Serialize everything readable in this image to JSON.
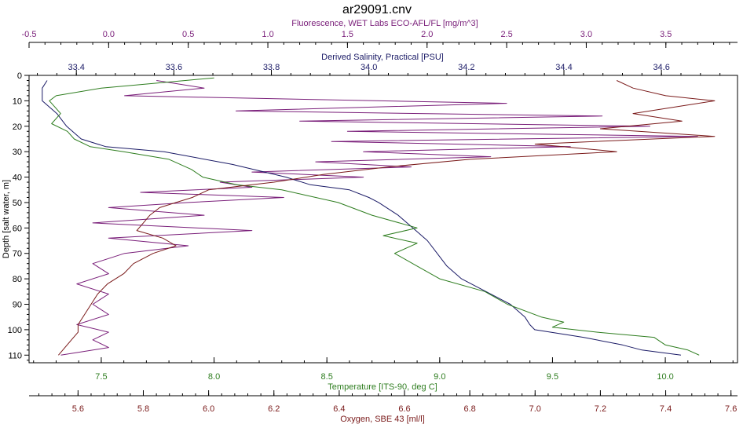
{
  "chart_data": {
    "type": "line",
    "title": "ar29091.cnv",
    "colors": {
      "fluorescence": "#7a1f7a",
      "salinity": "#1a1a66",
      "temperature": "#2e7d1f",
      "oxygen": "#7a1a1a",
      "axis": "#000000",
      "background": "#ffffff"
    },
    "axes": {
      "depth": {
        "label": "Depth [salt water, m]",
        "range": [
          0,
          113
        ],
        "inverted": true,
        "ticks": [
          0,
          10,
          20,
          30,
          40,
          50,
          60,
          70,
          80,
          90,
          100,
          110
        ]
      },
      "fluorescence": {
        "label": "Fluorescence, WET Labs ECO-AFL/FL [mg/m^3]",
        "position": "top",
        "range": [
          -0.5,
          3.95
        ],
        "ticks": [
          -0.5,
          0.0,
          0.5,
          1.0,
          1.5,
          2.0,
          2.5,
          3.0,
          3.5
        ],
        "tick_labels": [
          "-0.5",
          "0.0",
          "0.5",
          "1.0",
          "1.5",
          "2.0",
          "2.5",
          "3.0",
          "3.5"
        ]
      },
      "salinity": {
        "label": "Derived Salinity, Practical [PSU]",
        "position": "top",
        "range": [
          33.303,
          34.756
        ],
        "ticks": [
          33.4,
          33.6,
          33.8,
          34.0,
          34.2,
          34.4,
          34.6
        ],
        "tick_labels": [
          "33.4",
          "33.6",
          "33.8",
          "34.0",
          "34.2",
          "34.4",
          "34.6"
        ]
      },
      "temperature": {
        "label": "Temperature [ITS-90, deg C]",
        "position": "bottom",
        "range": [
          7.18,
          10.32
        ],
        "ticks": [
          7.5,
          8.0,
          8.5,
          9.0,
          9.5,
          10.0
        ],
        "tick_labels": [
          "7.5",
          "8.0",
          "8.5",
          "9.0",
          "9.5",
          "10.0"
        ]
      },
      "oxygen": {
        "label": "Oxygen, SBE 43 [ml/l]",
        "position": "bottom",
        "range": [
          5.45,
          7.62
        ],
        "ticks": [
          5.6,
          5.8,
          6.0,
          6.2,
          6.4,
          6.6,
          6.8,
          7.0,
          7.2,
          7.4,
          7.6
        ],
        "tick_labels": [
          "5.6",
          "5.8",
          "6.0",
          "6.2",
          "6.4",
          "6.6",
          "6.8",
          "7.0",
          "7.2",
          "7.4",
          "7.6"
        ]
      }
    },
    "grid": false,
    "series": [
      {
        "key": "fluorescence",
        "axis": "fluorescence",
        "depth": [
          2,
          5,
          8,
          11,
          14,
          16,
          18,
          20,
          22,
          24,
          26,
          28,
          30,
          32,
          34,
          36,
          38,
          40,
          42,
          44,
          46,
          48,
          50,
          52,
          55,
          58,
          61,
          64,
          67,
          70,
          74,
          78,
          82,
          86,
          90,
          94,
          98,
          101,
          104,
          107,
          110
        ],
        "values": [
          0.3,
          0.6,
          0.1,
          2.5,
          0.8,
          3.1,
          1.2,
          3.4,
          1.5,
          3.7,
          1.4,
          2.9,
          1.6,
          2.4,
          1.3,
          1.9,
          0.9,
          1.6,
          0.7,
          0.9,
          0.2,
          1.1,
          0.5,
          0.0,
          0.6,
          -0.1,
          0.9,
          0.0,
          0.5,
          0.1,
          -0.1,
          0.0,
          -0.2,
          0.0,
          -0.1,
          0.0,
          -0.2,
          0.0,
          -0.1,
          0.0,
          -0.3
        ]
      },
      {
        "key": "salinity",
        "axis": "salinity",
        "depth": [
          2,
          5,
          10,
          15,
          20,
          25,
          28,
          30,
          35,
          40,
          43,
          45,
          48,
          50,
          55,
          60,
          65,
          70,
          75,
          80,
          85,
          90,
          95,
          98,
          100,
          103,
          106,
          108,
          110
        ],
        "values": [
          33.34,
          33.33,
          33.33,
          33.36,
          33.38,
          33.41,
          33.46,
          33.58,
          33.72,
          33.83,
          33.88,
          33.96,
          34.0,
          34.02,
          34.06,
          34.09,
          34.12,
          34.14,
          34.16,
          34.19,
          34.24,
          34.29,
          34.32,
          34.33,
          34.34,
          34.44,
          34.52,
          34.56,
          34.64
        ]
      },
      {
        "key": "temperature",
        "axis": "temperature",
        "depth": [
          1,
          3,
          5,
          8,
          10,
          15,
          19,
          22,
          25,
          28,
          30,
          33,
          37,
          40,
          43,
          45,
          47,
          50,
          55,
          60,
          63,
          66,
          70,
          75,
          80,
          85,
          90,
          95,
          97,
          99,
          101,
          103,
          106,
          108,
          110
        ],
        "values": [
          8.0,
          7.75,
          7.5,
          7.3,
          7.27,
          7.32,
          7.28,
          7.35,
          7.38,
          7.45,
          7.6,
          7.8,
          7.9,
          7.95,
          8.1,
          8.3,
          8.4,
          8.55,
          8.7,
          8.9,
          8.75,
          8.9,
          8.8,
          8.9,
          9.0,
          9.2,
          9.3,
          9.45,
          9.55,
          9.5,
          9.7,
          9.95,
          10.0,
          10.1,
          10.15
        ]
      },
      {
        "key": "oxygen",
        "axis": "oxygen",
        "depth": [
          2,
          5,
          8,
          10,
          12,
          15,
          18,
          21,
          24,
          27,
          30,
          33,
          36,
          39,
          42,
          45,
          48,
          50,
          52,
          55,
          58,
          61,
          64,
          67,
          70,
          74,
          78,
          82,
          86,
          90,
          94,
          98,
          101,
          104,
          107,
          110
        ],
        "values": [
          7.25,
          7.3,
          7.4,
          7.55,
          7.45,
          7.3,
          7.45,
          7.2,
          7.55,
          7.0,
          7.25,
          6.8,
          6.55,
          6.35,
          6.2,
          6.0,
          5.95,
          5.9,
          5.85,
          5.82,
          5.8,
          5.78,
          5.86,
          5.9,
          5.83,
          5.77,
          5.74,
          5.69,
          5.66,
          5.64,
          5.62,
          5.6,
          5.6,
          5.58,
          5.56,
          5.54
        ]
      }
    ]
  }
}
